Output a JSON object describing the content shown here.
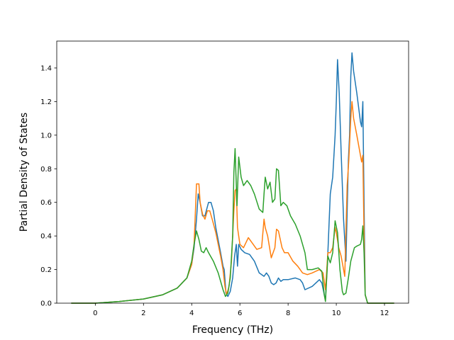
{
  "chart_data": {
    "type": "line",
    "title": "",
    "xlabel": "Frequency (THz)",
    "ylabel": "Partial Density of States",
    "xlim": [
      -1.6,
      13.0
    ],
    "ylim": [
      0.0,
      1.56
    ],
    "xticks": [
      "0",
      "2",
      "4",
      "6",
      "8",
      "10",
      "12"
    ],
    "yticks": [
      "0.0",
      "0.2",
      "0.4",
      "0.6",
      "0.8",
      "1.0",
      "1.2",
      "1.4"
    ],
    "grid": false,
    "legend": "none",
    "series": [
      {
        "color": "#1f77b4",
        "points": [
          [
            -1.0,
            0.0
          ],
          [
            0.0,
            0.0
          ],
          [
            1.0,
            0.01
          ],
          [
            2.0,
            0.025
          ],
          [
            2.8,
            0.05
          ],
          [
            3.4,
            0.09
          ],
          [
            3.8,
            0.15
          ],
          [
            4.0,
            0.23
          ],
          [
            4.1,
            0.33
          ],
          [
            4.2,
            0.5
          ],
          [
            4.27,
            0.65
          ],
          [
            4.35,
            0.6
          ],
          [
            4.45,
            0.52
          ],
          [
            4.55,
            0.52
          ],
          [
            4.7,
            0.6
          ],
          [
            4.8,
            0.6
          ],
          [
            4.9,
            0.55
          ],
          [
            5.0,
            0.45
          ],
          [
            5.2,
            0.3
          ],
          [
            5.3,
            0.22
          ],
          [
            5.35,
            0.2
          ],
          [
            5.42,
            0.06
          ],
          [
            5.5,
            0.04
          ],
          [
            5.6,
            0.07
          ],
          [
            5.7,
            0.15
          ],
          [
            5.78,
            0.28
          ],
          [
            5.85,
            0.35
          ],
          [
            5.9,
            0.22
          ],
          [
            5.95,
            0.35
          ],
          [
            6.05,
            0.32
          ],
          [
            6.2,
            0.3
          ],
          [
            6.4,
            0.29
          ],
          [
            6.6,
            0.25
          ],
          [
            6.8,
            0.18
          ],
          [
            7.0,
            0.16
          ],
          [
            7.1,
            0.18
          ],
          [
            7.2,
            0.16
          ],
          [
            7.3,
            0.12
          ],
          [
            7.4,
            0.11
          ],
          [
            7.5,
            0.12
          ],
          [
            7.6,
            0.15
          ],
          [
            7.7,
            0.13
          ],
          [
            7.8,
            0.14
          ],
          [
            8.0,
            0.14
          ],
          [
            8.3,
            0.15
          ],
          [
            8.5,
            0.14
          ],
          [
            8.6,
            0.12
          ],
          [
            8.7,
            0.08
          ],
          [
            9.0,
            0.1
          ],
          [
            9.3,
            0.14
          ],
          [
            9.4,
            0.12
          ],
          [
            9.5,
            0.05
          ],
          [
            9.55,
            0.02
          ],
          [
            9.65,
            0.3
          ],
          [
            9.75,
            0.65
          ],
          [
            9.85,
            0.75
          ],
          [
            9.95,
            1.0
          ],
          [
            10.0,
            1.2
          ],
          [
            10.05,
            1.45
          ],
          [
            10.12,
            1.25
          ],
          [
            10.2,
            0.9
          ],
          [
            10.3,
            0.5
          ],
          [
            10.4,
            0.25
          ],
          [
            10.5,
            0.85
          ],
          [
            10.55,
            1.0
          ],
          [
            10.6,
            1.35
          ],
          [
            10.65,
            1.49
          ],
          [
            10.72,
            1.38
          ],
          [
            10.85,
            1.25
          ],
          [
            11.0,
            1.08
          ],
          [
            11.05,
            1.05
          ],
          [
            11.1,
            1.2
          ],
          [
            11.15,
            0.6
          ],
          [
            11.2,
            0.05
          ],
          [
            11.3,
            0.0
          ],
          [
            12.4,
            0.0
          ]
        ]
      },
      {
        "color": "#ff7f0e",
        "points": [
          [
            -1.0,
            0.0
          ],
          [
            0.0,
            0.0
          ],
          [
            1.0,
            0.01
          ],
          [
            2.0,
            0.025
          ],
          [
            2.8,
            0.05
          ],
          [
            3.4,
            0.09
          ],
          [
            3.8,
            0.15
          ],
          [
            4.0,
            0.23
          ],
          [
            4.1,
            0.35
          ],
          [
            4.2,
            0.71
          ],
          [
            4.3,
            0.71
          ],
          [
            4.35,
            0.6
          ],
          [
            4.45,
            0.53
          ],
          [
            4.55,
            0.5
          ],
          [
            4.65,
            0.55
          ],
          [
            4.75,
            0.55
          ],
          [
            4.85,
            0.5
          ],
          [
            5.0,
            0.42
          ],
          [
            5.2,
            0.28
          ],
          [
            5.3,
            0.2
          ],
          [
            5.38,
            0.1
          ],
          [
            5.45,
            0.05
          ],
          [
            5.55,
            0.1
          ],
          [
            5.65,
            0.25
          ],
          [
            5.75,
            0.55
          ],
          [
            5.8,
            0.67
          ],
          [
            5.85,
            0.68
          ],
          [
            5.9,
            0.45
          ],
          [
            6.0,
            0.35
          ],
          [
            6.15,
            0.33
          ],
          [
            6.25,
            0.36
          ],
          [
            6.35,
            0.39
          ],
          [
            6.5,
            0.36
          ],
          [
            6.7,
            0.32
          ],
          [
            6.9,
            0.33
          ],
          [
            7.0,
            0.5
          ],
          [
            7.05,
            0.45
          ],
          [
            7.15,
            0.4
          ],
          [
            7.3,
            0.27
          ],
          [
            7.45,
            0.33
          ],
          [
            7.52,
            0.44
          ],
          [
            7.6,
            0.43
          ],
          [
            7.75,
            0.33
          ],
          [
            7.85,
            0.3
          ],
          [
            8.0,
            0.3
          ],
          [
            8.2,
            0.25
          ],
          [
            8.4,
            0.22
          ],
          [
            8.6,
            0.18
          ],
          [
            8.8,
            0.17
          ],
          [
            9.0,
            0.18
          ],
          [
            9.3,
            0.2
          ],
          [
            9.45,
            0.18
          ],
          [
            9.55,
            0.08
          ],
          [
            9.65,
            0.3
          ],
          [
            9.75,
            0.3
          ],
          [
            9.85,
            0.33
          ],
          [
            9.95,
            0.45
          ],
          [
            10.0,
            0.42
          ],
          [
            10.1,
            0.33
          ],
          [
            10.2,
            0.28
          ],
          [
            10.3,
            0.2
          ],
          [
            10.35,
            0.16
          ],
          [
            10.45,
            0.7
          ],
          [
            10.52,
            0.85
          ],
          [
            10.6,
            1.1
          ],
          [
            10.65,
            1.2
          ],
          [
            10.72,
            1.1
          ],
          [
            10.85,
            1.0
          ],
          [
            11.0,
            0.88
          ],
          [
            11.05,
            0.84
          ],
          [
            11.1,
            0.88
          ],
          [
            11.15,
            0.4
          ],
          [
            11.2,
            0.05
          ],
          [
            11.3,
            0.0
          ],
          [
            12.4,
            0.0
          ]
        ]
      },
      {
        "color": "#2ca02c",
        "points": [
          [
            -1.0,
            0.0
          ],
          [
            0.0,
            0.0
          ],
          [
            1.0,
            0.01
          ],
          [
            2.0,
            0.025
          ],
          [
            2.8,
            0.05
          ],
          [
            3.4,
            0.09
          ],
          [
            3.8,
            0.15
          ],
          [
            4.0,
            0.25
          ],
          [
            4.1,
            0.35
          ],
          [
            4.2,
            0.43
          ],
          [
            4.3,
            0.38
          ],
          [
            4.4,
            0.31
          ],
          [
            4.5,
            0.3
          ],
          [
            4.6,
            0.33
          ],
          [
            4.7,
            0.3
          ],
          [
            4.9,
            0.25
          ],
          [
            5.1,
            0.18
          ],
          [
            5.3,
            0.08
          ],
          [
            5.4,
            0.04
          ],
          [
            5.5,
            0.06
          ],
          [
            5.6,
            0.15
          ],
          [
            5.7,
            0.4
          ],
          [
            5.75,
            0.78
          ],
          [
            5.8,
            0.92
          ],
          [
            5.88,
            0.58
          ],
          [
            5.95,
            0.87
          ],
          [
            6.05,
            0.75
          ],
          [
            6.15,
            0.7
          ],
          [
            6.3,
            0.73
          ],
          [
            6.45,
            0.7
          ],
          [
            6.6,
            0.65
          ],
          [
            6.8,
            0.56
          ],
          [
            6.95,
            0.54
          ],
          [
            7.0,
            0.65
          ],
          [
            7.05,
            0.75
          ],
          [
            7.15,
            0.68
          ],
          [
            7.25,
            0.72
          ],
          [
            7.35,
            0.6
          ],
          [
            7.45,
            0.62
          ],
          [
            7.52,
            0.8
          ],
          [
            7.6,
            0.79
          ],
          [
            7.7,
            0.58
          ],
          [
            7.8,
            0.6
          ],
          [
            7.95,
            0.58
          ],
          [
            8.1,
            0.52
          ],
          [
            8.3,
            0.47
          ],
          [
            8.5,
            0.4
          ],
          [
            8.7,
            0.3
          ],
          [
            8.8,
            0.2
          ],
          [
            9.0,
            0.2
          ],
          [
            9.25,
            0.21
          ],
          [
            9.4,
            0.19
          ],
          [
            9.5,
            0.05
          ],
          [
            9.55,
            0.01
          ],
          [
            9.65,
            0.28
          ],
          [
            9.75,
            0.24
          ],
          [
            9.85,
            0.3
          ],
          [
            9.95,
            0.49
          ],
          [
            10.05,
            0.42
          ],
          [
            10.15,
            0.2
          ],
          [
            10.25,
            0.07
          ],
          [
            10.3,
            0.05
          ],
          [
            10.4,
            0.06
          ],
          [
            10.5,
            0.15
          ],
          [
            10.6,
            0.25
          ],
          [
            10.75,
            0.33
          ],
          [
            10.85,
            0.34
          ],
          [
            11.0,
            0.35
          ],
          [
            11.05,
            0.38
          ],
          [
            11.1,
            0.46
          ],
          [
            11.15,
            0.3
          ],
          [
            11.2,
            0.05
          ],
          [
            11.3,
            0.0
          ],
          [
            12.4,
            0.0
          ]
        ]
      }
    ]
  }
}
